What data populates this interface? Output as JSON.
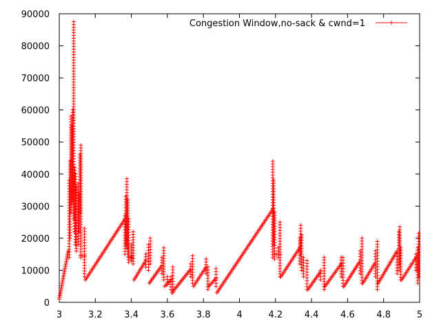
{
  "chart_data": {
    "type": "scatter",
    "title": "",
    "xlabel": "",
    "ylabel": "",
    "xlim": [
      3,
      5
    ],
    "ylim": [
      0,
      90000
    ],
    "x_ticks": [
      "3",
      "3.2",
      "3.4",
      "3.6",
      "3.8",
      "4",
      "4.2",
      "4.4",
      "4.6",
      "4.8",
      "5"
    ],
    "y_ticks": [
      "0",
      "10000",
      "20000",
      "30000",
      "40000",
      "50000",
      "60000",
      "70000",
      "80000",
      "90000"
    ],
    "grid": false,
    "legend_position": "top-right",
    "marker": "plus",
    "color": "#ff0000",
    "series": [
      {
        "name": "Congestion Window,no-sack & cwnd=1",
        "segments": [
          {
            "type": "ramp",
            "x0": 3.0,
            "x1": 3.05,
            "y0": 1000,
            "y1": 16000
          },
          {
            "type": "vline",
            "x": 3.055,
            "y0": 14000,
            "y1": 38000
          },
          {
            "type": "vline",
            "x": 3.06,
            "y0": 20000,
            "y1": 44000
          },
          {
            "type": "vline",
            "x": 3.065,
            "y0": 28000,
            "y1": 58000
          },
          {
            "type": "vline",
            "x": 3.07,
            "y0": 31000,
            "y1": 55000
          },
          {
            "type": "vline",
            "x": 3.075,
            "y0": 32000,
            "y1": 60000
          },
          {
            "type": "vline",
            "x": 3.08,
            "y0": 26000,
            "y1": 87500
          },
          {
            "type": "vline",
            "x": 3.085,
            "y0": 22000,
            "y1": 42000
          },
          {
            "type": "vline",
            "x": 3.09,
            "y0": 18000,
            "y1": 40000
          },
          {
            "type": "vline",
            "x": 3.095,
            "y0": 16000,
            "y1": 36000
          },
          {
            "type": "vline",
            "x": 3.105,
            "y0": 18000,
            "y1": 37000
          },
          {
            "type": "vline",
            "x": 3.11,
            "y0": 22000,
            "y1": 34000
          },
          {
            "type": "vline",
            "x": 3.115,
            "y0": 28000,
            "y1": 46000
          },
          {
            "type": "vline",
            "x": 3.12,
            "y0": 14000,
            "y1": 49000
          },
          {
            "type": "flat",
            "x0": 3.12,
            "x1": 3.14,
            "y": 14500
          },
          {
            "type": "vline",
            "x": 3.14,
            "y0": 8000,
            "y1": 23000
          },
          {
            "type": "ramp",
            "x0": 3.145,
            "x1": 3.365,
            "y0": 7000,
            "y1": 26000
          },
          {
            "type": "vline",
            "x": 3.365,
            "y0": 15000,
            "y1": 27000
          },
          {
            "type": "vline",
            "x": 3.37,
            "y0": 18000,
            "y1": 33000
          },
          {
            "type": "vline",
            "x": 3.375,
            "y0": 17000,
            "y1": 38500
          },
          {
            "type": "vline",
            "x": 3.38,
            "y0": 15000,
            "y1": 32000
          },
          {
            "type": "vline",
            "x": 3.385,
            "y0": 12500,
            "y1": 26000
          },
          {
            "type": "flat",
            "x0": 3.385,
            "x1": 3.405,
            "y": 14000
          },
          {
            "type": "vline",
            "x": 3.41,
            "y0": 12000,
            "y1": 22000
          },
          {
            "type": "vline",
            "x": 3.4,
            "y0": 13000,
            "y1": 18000
          },
          {
            "type": "ramp",
            "x0": 3.415,
            "x1": 3.48,
            "y0": 7000,
            "y1": 13000
          },
          {
            "type": "vline",
            "x": 3.48,
            "y0": 11000,
            "y1": 15000
          },
          {
            "type": "vline",
            "x": 3.495,
            "y0": 10000,
            "y1": 18000
          },
          {
            "type": "vline",
            "x": 3.505,
            "y0": 12000,
            "y1": 20000
          },
          {
            "type": "ramp",
            "x0": 3.5,
            "x1": 3.57,
            "y0": 6000,
            "y1": 11500
          },
          {
            "type": "vline",
            "x": 3.57,
            "y0": 9000,
            "y1": 14000
          },
          {
            "type": "vline",
            "x": 3.58,
            "y0": 7000,
            "y1": 17000
          },
          {
            "type": "ramp",
            "x0": 3.585,
            "x1": 3.62,
            "y0": 5000,
            "y1": 7000
          },
          {
            "type": "vline",
            "x": 3.6,
            "y0": 5500,
            "y1": 8000
          },
          {
            "type": "vline",
            "x": 3.62,
            "y0": 4000,
            "y1": 8000
          },
          {
            "type": "ramp",
            "x0": 3.625,
            "x1": 3.725,
            "y0": 3000,
            "y1": 10000
          },
          {
            "type": "vline",
            "x": 3.63,
            "y0": 3000,
            "y1": 11000
          },
          {
            "type": "vline",
            "x": 3.73,
            "y0": 8000,
            "y1": 12000
          },
          {
            "type": "vline",
            "x": 3.74,
            "y0": 6000,
            "y1": 14500
          },
          {
            "type": "ramp",
            "x0": 3.745,
            "x1": 3.815,
            "y0": 5000,
            "y1": 11000
          },
          {
            "type": "vline",
            "x": 3.815,
            "y0": 9000,
            "y1": 13500
          },
          {
            "type": "vline",
            "x": 3.825,
            "y0": 4000,
            "y1": 11000
          },
          {
            "type": "ramp",
            "x0": 3.83,
            "x1": 3.87,
            "y0": 5000,
            "y1": 7500
          },
          {
            "type": "vline",
            "x": 3.87,
            "y0": 5000,
            "y1": 10500
          },
          {
            "type": "ramp",
            "x0": 3.875,
            "x1": 4.185,
            "y0": 3000,
            "y1": 29000
          },
          {
            "type": "vline",
            "x": 4.185,
            "y0": 14000,
            "y1": 44000
          },
          {
            "type": "vline",
            "x": 4.19,
            "y0": 18000,
            "y1": 38000
          },
          {
            "type": "vline",
            "x": 4.195,
            "y0": 13500,
            "y1": 28000
          },
          {
            "type": "flat",
            "x0": 4.195,
            "x1": 4.225,
            "y": 15000
          },
          {
            "type": "vline",
            "x": 4.215,
            "y0": 14000,
            "y1": 17000
          },
          {
            "type": "vline",
            "x": 4.225,
            "y0": 8000,
            "y1": 25000
          },
          {
            "type": "ramp",
            "x0": 4.23,
            "x1": 4.335,
            "y0": 8000,
            "y1": 17000
          },
          {
            "type": "vline",
            "x": 4.335,
            "y0": 12000,
            "y1": 20000
          },
          {
            "type": "vline",
            "x": 4.34,
            "y0": 15000,
            "y1": 24000
          },
          {
            "type": "vline",
            "x": 4.345,
            "y0": 10000,
            "y1": 21000
          },
          {
            "type": "vline",
            "x": 4.355,
            "y0": 8000,
            "y1": 14000
          },
          {
            "type": "vline",
            "x": 4.375,
            "y0": 4000,
            "y1": 13000
          },
          {
            "type": "ramp",
            "x0": 4.38,
            "x1": 4.45,
            "y0": 4000,
            "y1": 9500
          },
          {
            "type": "vline",
            "x": 4.45,
            "y0": 7000,
            "y1": 10000
          },
          {
            "type": "vline",
            "x": 4.47,
            "y0": 4000,
            "y1": 14000
          },
          {
            "type": "ramp",
            "x0": 4.475,
            "x1": 4.565,
            "y0": 5000,
            "y1": 12000
          },
          {
            "type": "vline",
            "x": 4.565,
            "y0": 8000,
            "y1": 14000
          },
          {
            "type": "vline",
            "x": 4.575,
            "y0": 5000,
            "y1": 14000
          },
          {
            "type": "ramp",
            "x0": 4.58,
            "x1": 4.665,
            "y0": 5000,
            "y1": 12500
          },
          {
            "type": "vline",
            "x": 4.67,
            "y0": 9000,
            "y1": 16000
          },
          {
            "type": "vline",
            "x": 4.68,
            "y0": 6000,
            "y1": 20000
          },
          {
            "type": "ramp",
            "x0": 4.685,
            "x1": 4.75,
            "y0": 6000,
            "y1": 12000
          },
          {
            "type": "vline",
            "x": 4.755,
            "y0": 8000,
            "y1": 16000
          },
          {
            "type": "vline",
            "x": 4.765,
            "y0": 4000,
            "y1": 19000
          },
          {
            "type": "ramp",
            "x0": 4.77,
            "x1": 4.875,
            "y0": 6000,
            "y1": 16000
          },
          {
            "type": "vline",
            "x": 4.875,
            "y0": 9000,
            "y1": 16000
          },
          {
            "type": "vline",
            "x": 4.885,
            "y0": 10000,
            "y1": 22000
          },
          {
            "type": "vline",
            "x": 4.89,
            "y0": 12000,
            "y1": 23500
          },
          {
            "type": "vline",
            "x": 4.895,
            "y0": 7000,
            "y1": 17000
          },
          {
            "type": "ramp",
            "x0": 4.9,
            "x1": 4.98,
            "y0": 7000,
            "y1": 14000
          },
          {
            "type": "vline",
            "x": 4.98,
            "y0": 10000,
            "y1": 15000
          },
          {
            "type": "vline",
            "x": 4.99,
            "y0": 6000,
            "y1": 17000
          },
          {
            "type": "vline",
            "x": 4.995,
            "y0": 8000,
            "y1": 21500
          }
        ]
      }
    ]
  }
}
